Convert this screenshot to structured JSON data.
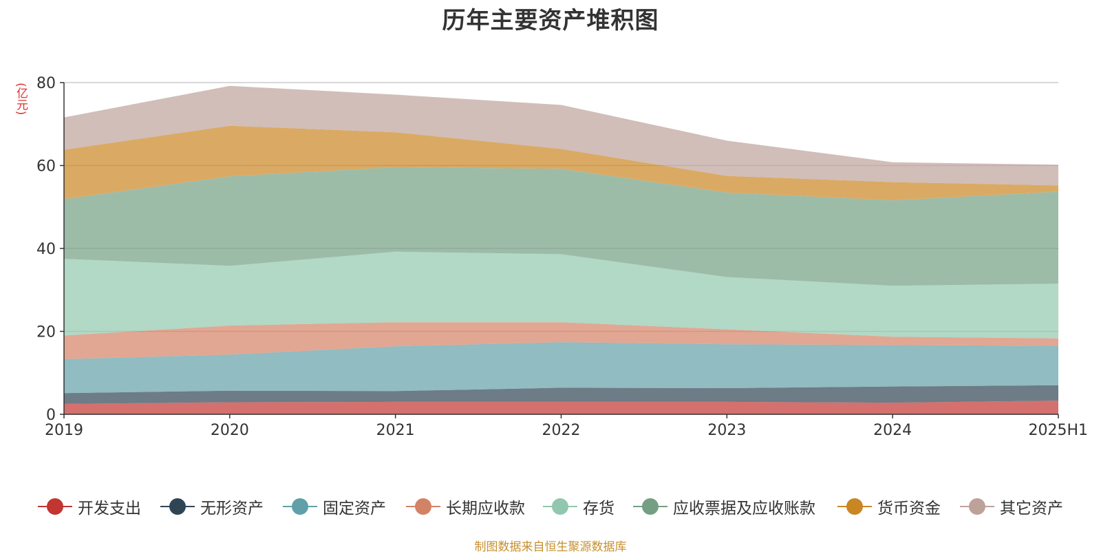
{
  "chart_data": {
    "type": "area",
    "stacked": true,
    "title": "历年主要资产堆积图",
    "unit_label": "(亿元)",
    "categories": [
      "2019",
      "2020",
      "2021",
      "2022",
      "2023",
      "2024",
      "2025H1"
    ],
    "ylim": [
      0,
      80
    ],
    "yticks": [
      "0",
      "20",
      "40",
      "60",
      "80"
    ],
    "grid": true,
    "legend_position": "bottom",
    "series": [
      {
        "name": "开发支出",
        "color": "#c23531",
        "values": [
          2.5,
          2.9,
          3.0,
          3.0,
          3.0,
          2.8,
          3.3
        ]
      },
      {
        "name": "无形资产",
        "color": "#2f4554",
        "values": [
          2.6,
          2.8,
          2.6,
          3.4,
          3.3,
          3.9,
          3.7
        ]
      },
      {
        "name": "固定资产",
        "color": "#61a0a8",
        "values": [
          8.2,
          8.7,
          10.8,
          11.0,
          10.6,
          10.0,
          9.5
        ]
      },
      {
        "name": "长期应收款",
        "color": "#d48265",
        "values": [
          5.7,
          7.0,
          5.8,
          4.8,
          3.6,
          2.0,
          1.8
        ]
      },
      {
        "name": "存货",
        "color": "#91c7ae",
        "values": [
          18.5,
          14.4,
          17.0,
          16.4,
          12.6,
          12.3,
          13.2
        ]
      },
      {
        "name": "应收票据及应收账款",
        "color": "#749f83",
        "values": [
          14.4,
          21.6,
          20.4,
          20.6,
          20.4,
          20.6,
          22.2
        ]
      },
      {
        "name": "货币资金",
        "color": "#ca8622",
        "values": [
          11.9,
          12.2,
          8.4,
          4.8,
          4.0,
          4.4,
          1.5
        ]
      },
      {
        "name": "其它资产",
        "color": "#bda29a",
        "values": [
          7.8,
          9.6,
          9.1,
          10.6,
          8.5,
          4.8,
          5.0
        ]
      }
    ]
  },
  "source_note": "制图数据来自恒生聚源数据库"
}
